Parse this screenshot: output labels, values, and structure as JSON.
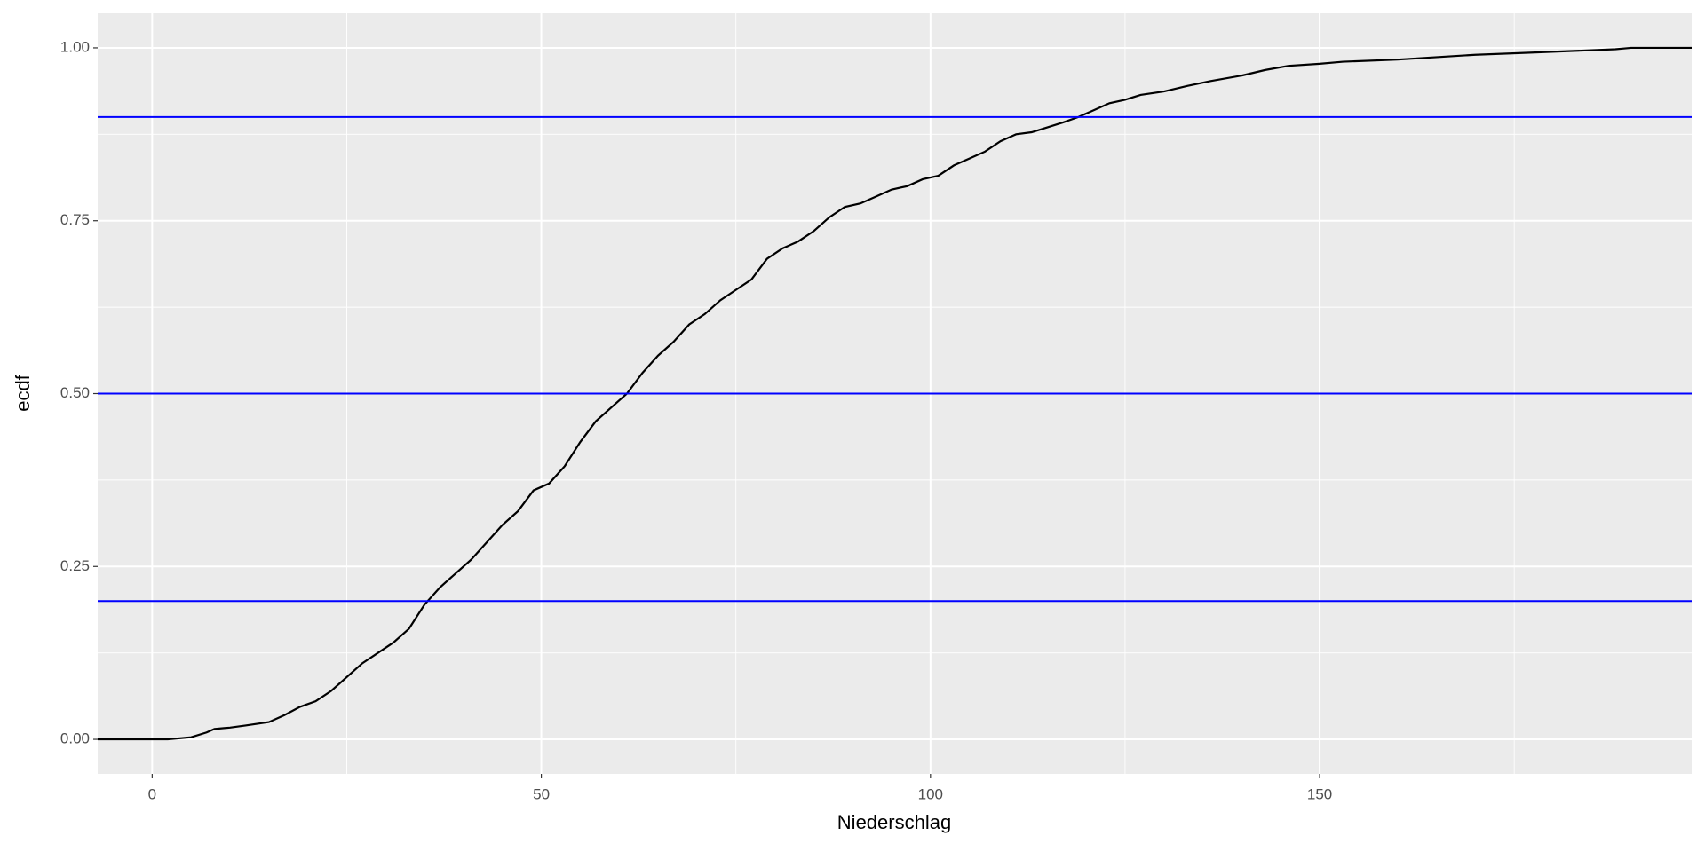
{
  "chart_data": {
    "type": "line",
    "x_label": "Niederschlag",
    "y_label": "ecdf",
    "xlim": [
      -7,
      197.8
    ],
    "ylim": [
      -0.05,
      1.05
    ],
    "xticks": [
      0,
      50,
      100,
      150
    ],
    "yticks": [
      {
        "value": 0,
        "label": "0.00"
      },
      {
        "value": 0.25,
        "label": "0.25"
      },
      {
        "value": 0.5,
        "label": "0.50"
      },
      {
        "value": 0.75,
        "label": "0.75"
      },
      {
        "value": 1,
        "label": "1.00"
      }
    ],
    "grid": true,
    "hlines": [
      0.2,
      0.5,
      0.9
    ],
    "hline_color": "#0000ff",
    "series": [
      {
        "color": "#000000",
        "x": [
          -7,
          2,
          5,
          7,
          8,
          10,
          12,
          15,
          17,
          19,
          21,
          23,
          25,
          27,
          29,
          31,
          33,
          35,
          37,
          39,
          41,
          43,
          45,
          47,
          49,
          51,
          53,
          55,
          57,
          59,
          61,
          63,
          65,
          67,
          69,
          71,
          73,
          75,
          77,
          79,
          81,
          83,
          85,
          87,
          89,
          91,
          93,
          95,
          97,
          99,
          101,
          103,
          105,
          107,
          109,
          111,
          113,
          115,
          117,
          119,
          121,
          123,
          125,
          127,
          130,
          133,
          136,
          140,
          143,
          146,
          150,
          153,
          160,
          170,
          177,
          188,
          190,
          197.8
        ],
        "values": [
          0,
          0,
          0.003,
          0.01,
          0.015,
          0.017,
          0.02,
          0.025,
          0.035,
          0.047,
          0.055,
          0.07,
          0.09,
          0.11,
          0.125,
          0.14,
          0.16,
          0.195,
          0.22,
          0.24,
          0.26,
          0.285,
          0.31,
          0.33,
          0.36,
          0.37,
          0.395,
          0.43,
          0.46,
          0.48,
          0.5,
          0.53,
          0.555,
          0.575,
          0.6,
          0.615,
          0.635,
          0.65,
          0.665,
          0.695,
          0.71,
          0.72,
          0.735,
          0.755,
          0.77,
          0.775,
          0.785,
          0.795,
          0.8,
          0.81,
          0.815,
          0.83,
          0.84,
          0.85,
          0.865,
          0.875,
          0.878,
          0.885,
          0.892,
          0.9,
          0.91,
          0.92,
          0.925,
          0.932,
          0.937,
          0.945,
          0.952,
          0.96,
          0.968,
          0.974,
          0.977,
          0.98,
          0.983,
          0.99,
          0.993,
          0.998,
          1,
          1
        ]
      }
    ]
  }
}
